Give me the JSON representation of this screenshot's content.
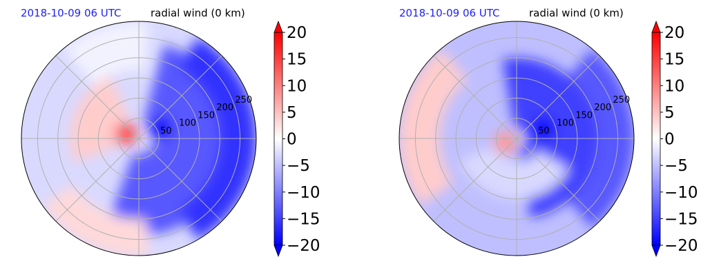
{
  "colors": {
    "date_text": "#1f1fff",
    "label_text": "#000000",
    "grid": "#b0b0b0",
    "cmap_low": "#0000ff",
    "cmap_mid": "#ffffff",
    "cmap_high": "#ff0000"
  },
  "chart_data": [
    {
      "type": "heatmap",
      "projection": "polar",
      "title_left": "2018-10-09 06 UTC",
      "title_right": "radial wind (0 km)",
      "radial_ticks": [
        "50",
        "100",
        "150",
        "200",
        "250"
      ],
      "radial_tick_values": [
        50,
        100,
        150,
        200,
        250
      ],
      "rmax": 290,
      "spokes_deg": [
        0,
        45,
        90,
        135,
        180,
        225,
        270,
        315
      ],
      "grid": true,
      "colorbar": {
        "vmin": -20,
        "vmax": 20,
        "extend": "both",
        "ticks": [
          20,
          15,
          10,
          5,
          0,
          -5,
          -10,
          -15,
          -20
        ],
        "tick_labels": [
          "20",
          "15",
          "10",
          "5",
          "0",
          "−5",
          "−10",
          "−15",
          "−20"
        ]
      },
      "field": {
        "background": -3,
        "features": [
          {
            "kind": "band",
            "name": "east-inflow",
            "az_from": -110,
            "az_to": 75,
            "r_from": 40,
            "r_to": 240,
            "value": -13
          },
          {
            "kind": "band",
            "name": "outer-east",
            "az_from": -60,
            "az_to": 60,
            "r_from": 200,
            "r_to": 290,
            "value": -16
          },
          {
            "kind": "blob",
            "name": "core-max",
            "az": 25,
            "r": 60,
            "value": -20
          },
          {
            "kind": "blob",
            "name": "west-positive",
            "az": 160,
            "r": 35,
            "value": 14
          },
          {
            "kind": "band",
            "name": "nw-positive",
            "az_from": 115,
            "az_to": 200,
            "r_from": 60,
            "r_to": 170,
            "value": 4
          },
          {
            "kind": "band",
            "name": "south-positive",
            "az_from": 215,
            "az_to": 275,
            "r_from": 200,
            "r_to": 290,
            "value": 3
          },
          {
            "kind": "band",
            "name": "north-weak",
            "az_from": 85,
            "az_to": 130,
            "r_from": 170,
            "r_to": 290,
            "value": -1
          }
        ]
      }
    },
    {
      "type": "heatmap",
      "projection": "polar",
      "title_left": "2018-10-09 06 UTC",
      "title_right": "radial wind (0 km)",
      "radial_ticks": [
        "50",
        "100",
        "150",
        "200",
        "250"
      ],
      "radial_tick_values": [
        50,
        100,
        150,
        200,
        250
      ],
      "rmax": 290,
      "spokes_deg": [
        0,
        45,
        90,
        135,
        180,
        225,
        270,
        315
      ],
      "grid": true,
      "colorbar": {
        "vmin": -20,
        "vmax": 20,
        "extend": "both",
        "ticks": [
          20,
          15,
          10,
          5,
          0,
          -5,
          -10,
          -15,
          -20
        ],
        "tick_labels": [
          "20",
          "15",
          "10",
          "5",
          "0",
          "−5",
          "−10",
          "−15",
          "−20"
        ]
      },
      "field": {
        "background": -5,
        "features": [
          {
            "kind": "band",
            "name": "east-inflow",
            "az_from": -80,
            "az_to": 100,
            "r_from": 30,
            "r_to": 200,
            "value": -15
          },
          {
            "kind": "band",
            "name": "outer-east",
            "az_from": -50,
            "az_to": 50,
            "r_from": 200,
            "r_to": 290,
            "value": -13
          },
          {
            "kind": "blob",
            "name": "core-max",
            "az": 20,
            "r": 70,
            "value": -20
          },
          {
            "kind": "blob",
            "name": "sw-positive",
            "az": 200,
            "r": 30,
            "value": 8
          },
          {
            "kind": "band",
            "name": "west-positive",
            "az_from": 130,
            "az_to": 215,
            "r_from": 190,
            "r_to": 290,
            "value": 4
          },
          {
            "kind": "band",
            "name": "spiral-weak",
            "az_from": 200,
            "az_to": 330,
            "r_from": 60,
            "r_to": 150,
            "value": -3
          }
        ]
      }
    }
  ]
}
